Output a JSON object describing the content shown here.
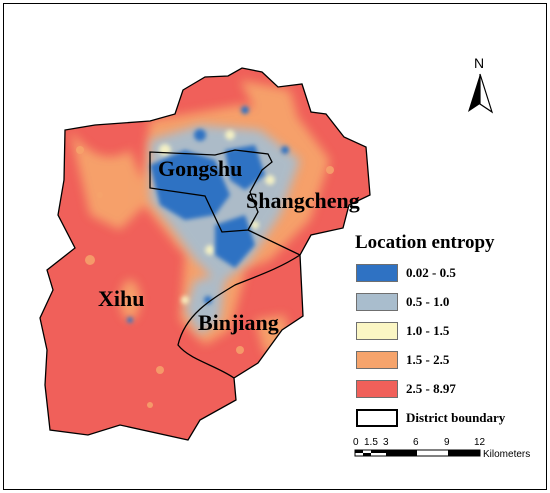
{
  "colors": {
    "class1": "#2f72c3",
    "class2": "#a9bdcd",
    "class3": "#fbf6c4",
    "class4": "#f6a46c",
    "class5": "#f0605a",
    "boundary": "#000000"
  },
  "districts": {
    "gongshu": "Gongshu",
    "shangcheng": "Shangcheng",
    "xihu": "Xihu",
    "binjiang": "Binjiang"
  },
  "legend": {
    "title": "Location entropy",
    "items": [
      {
        "label": "0.02 - 0.5",
        "color": "#2f72c3"
      },
      {
        "label": "0.5 - 1.0",
        "color": "#a9bdcd"
      },
      {
        "label": "1.0 - 1.5",
        "color": "#fbf6c4"
      },
      {
        "label": "1.5 - 2.5",
        "color": "#f6a46c"
      },
      {
        "label": "2.5 - 8.97",
        "color": "#f0605a"
      }
    ],
    "boundary_label": "District boundary"
  },
  "north_arrow": {
    "label": "N",
    "icon": "north-arrow-icon"
  },
  "scale_bar": {
    "ticks": [
      "0",
      "1.5",
      "3",
      "6",
      "9",
      "12"
    ],
    "unit": "Kilometers"
  }
}
